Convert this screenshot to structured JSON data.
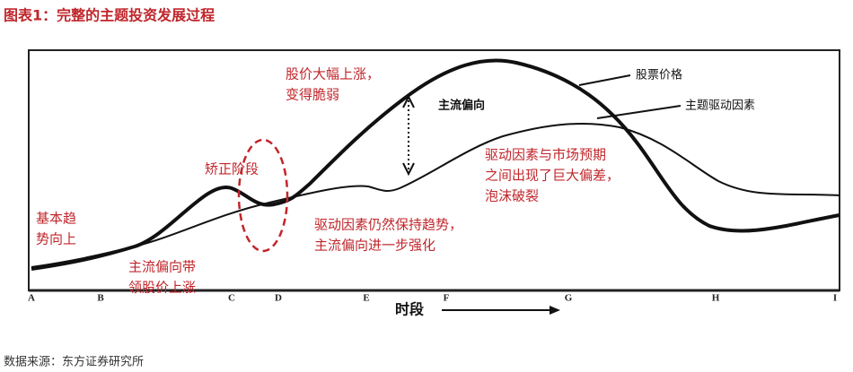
{
  "header": {
    "title": "图表1：完整的主题投资发展过程"
  },
  "annotations": {
    "surge": [
      "股价大幅上涨，",
      "变得脆弱"
    ],
    "stock_price": "股票价格",
    "theme_driver": "主题驱动因素",
    "mainstream_bias": "主流偏向",
    "bubble": [
      "驱动因素与市场预期",
      "之间出现了巨大偏差，",
      "泡沫破裂"
    ],
    "correction": "矫正阶段",
    "basic_trend": [
      "基本趋",
      "势向上"
    ],
    "continue": [
      "驱动因素仍然保持趋势，",
      "主流偏向进一步强化"
    ],
    "lead": [
      "主流偏向带",
      "领股价上涨"
    ]
  },
  "axis": {
    "ticks": [
      "A",
      "B",
      "C",
      "D",
      "E",
      "F",
      "G",
      "H",
      "I"
    ],
    "label": "时段"
  },
  "source": "数据来源：东方证券研究所"
}
